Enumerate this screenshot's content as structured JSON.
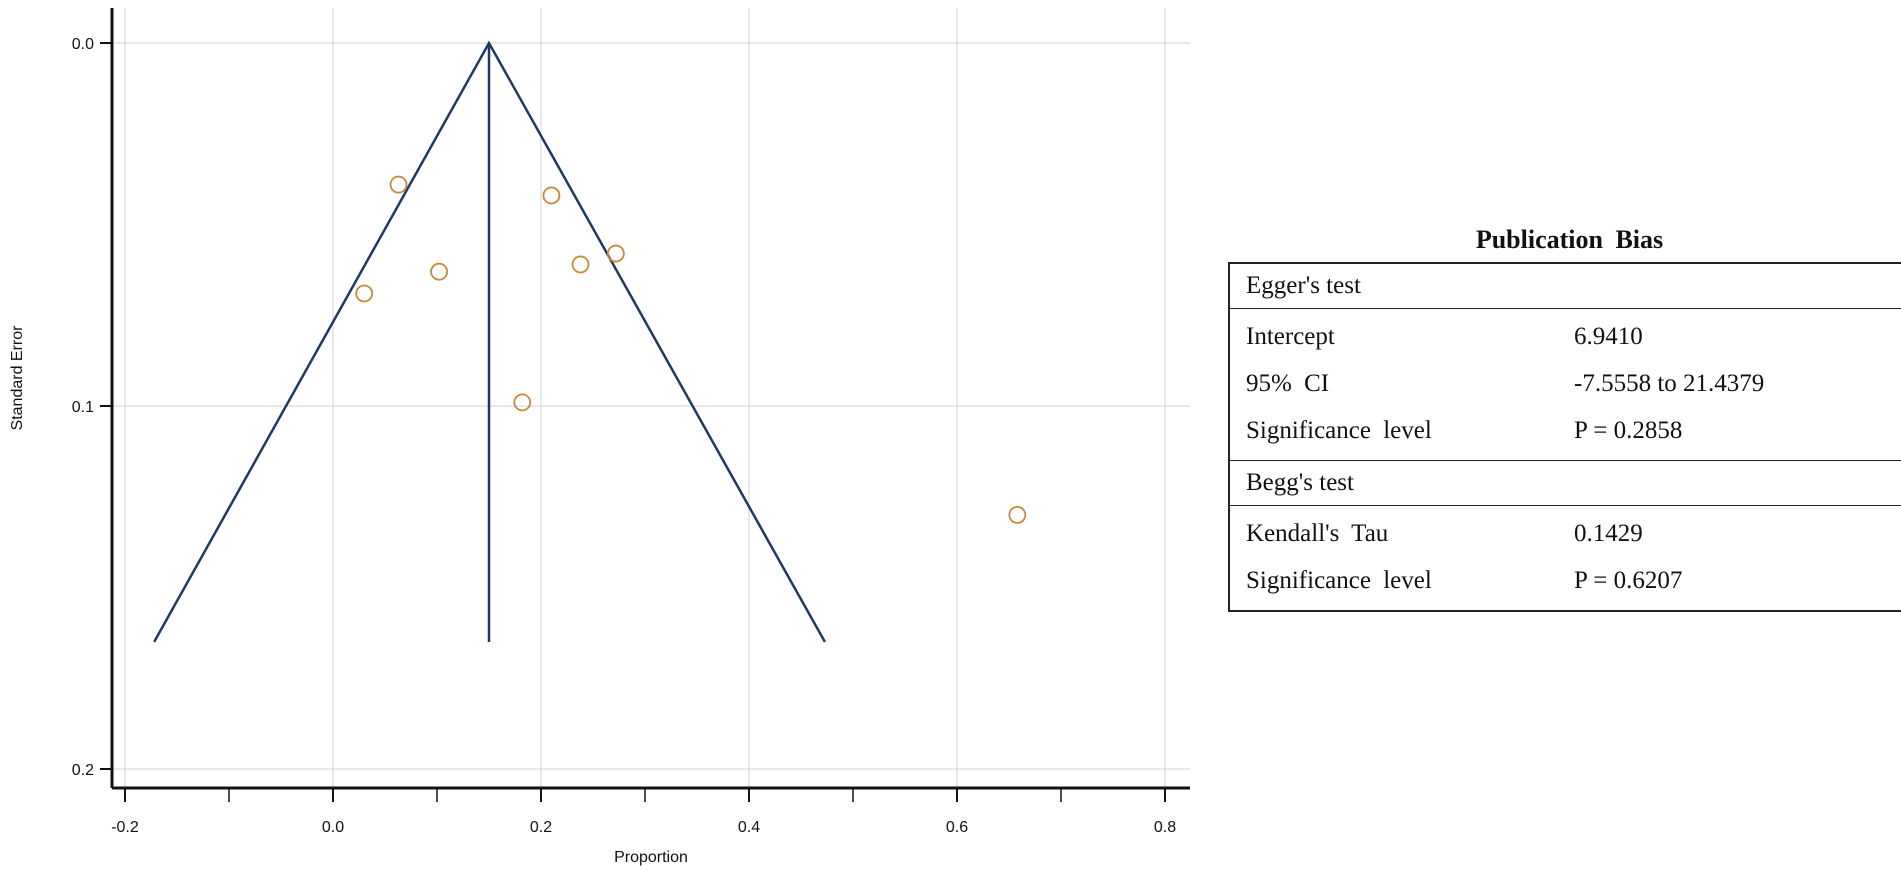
{
  "chart_data": {
    "type": "scatter",
    "subtype": "funnel",
    "title": "",
    "xlabel": "Proportion",
    "ylabel": "Standard Error",
    "xlim": [
      -0.22,
      0.83
    ],
    "ylim": [
      0.0,
      0.204
    ],
    "y_inverted": true,
    "x_ticks": [
      -0.2,
      0.0,
      0.2,
      0.4,
      0.6,
      0.8
    ],
    "x_tick_labels": [
      "-0.2",
      "0.0",
      "0.2",
      "0.4",
      "0.6",
      "0.8"
    ],
    "x_minor_ticks": [
      -0.1,
      0.1,
      0.3,
      0.5,
      0.7
    ],
    "y_ticks": [
      0.0,
      0.1,
      0.2
    ],
    "y_tick_labels": [
      "0.0",
      "0.1",
      "0.2"
    ],
    "grid": true,
    "funnel": {
      "apex": [
        0.15,
        0.0
      ],
      "left_base": [
        -0.172,
        0.165
      ],
      "right_base": [
        0.473,
        0.165
      ],
      "center_line": {
        "x": 0.15,
        "y_from": 0.0,
        "y_to": 0.165
      }
    },
    "points": [
      {
        "x": 0.063,
        "y": 0.039
      },
      {
        "x": 0.21,
        "y": 0.042
      },
      {
        "x": 0.272,
        "y": 0.058
      },
      {
        "x": 0.238,
        "y": 0.061
      },
      {
        "x": 0.102,
        "y": 0.063
      },
      {
        "x": 0.03,
        "y": 0.069
      },
      {
        "x": 0.182,
        "y": 0.099
      },
      {
        "x": 0.658,
        "y": 0.13
      }
    ],
    "colors": {
      "funnel": "#1f3864",
      "points": "#c8893e",
      "grid": "#d9d9d9",
      "axis": "#111111"
    }
  },
  "bias": {
    "title": "Publication  Bias",
    "egger": {
      "heading": "Egger's test",
      "rows": [
        {
          "label": "Intercept",
          "value": "6.9410"
        },
        {
          "label": "95% CI",
          "value": "-7.5558 to 21.4379"
        },
        {
          "label": "Significance  level",
          "value": "P = 0.2858"
        }
      ]
    },
    "begg": {
      "heading": "Begg's test",
      "rows": [
        {
          "label": "Kendall's  Tau",
          "value": "0.1429"
        },
        {
          "label": "Significance  level",
          "value": "P = 0.6207"
        }
      ]
    }
  }
}
